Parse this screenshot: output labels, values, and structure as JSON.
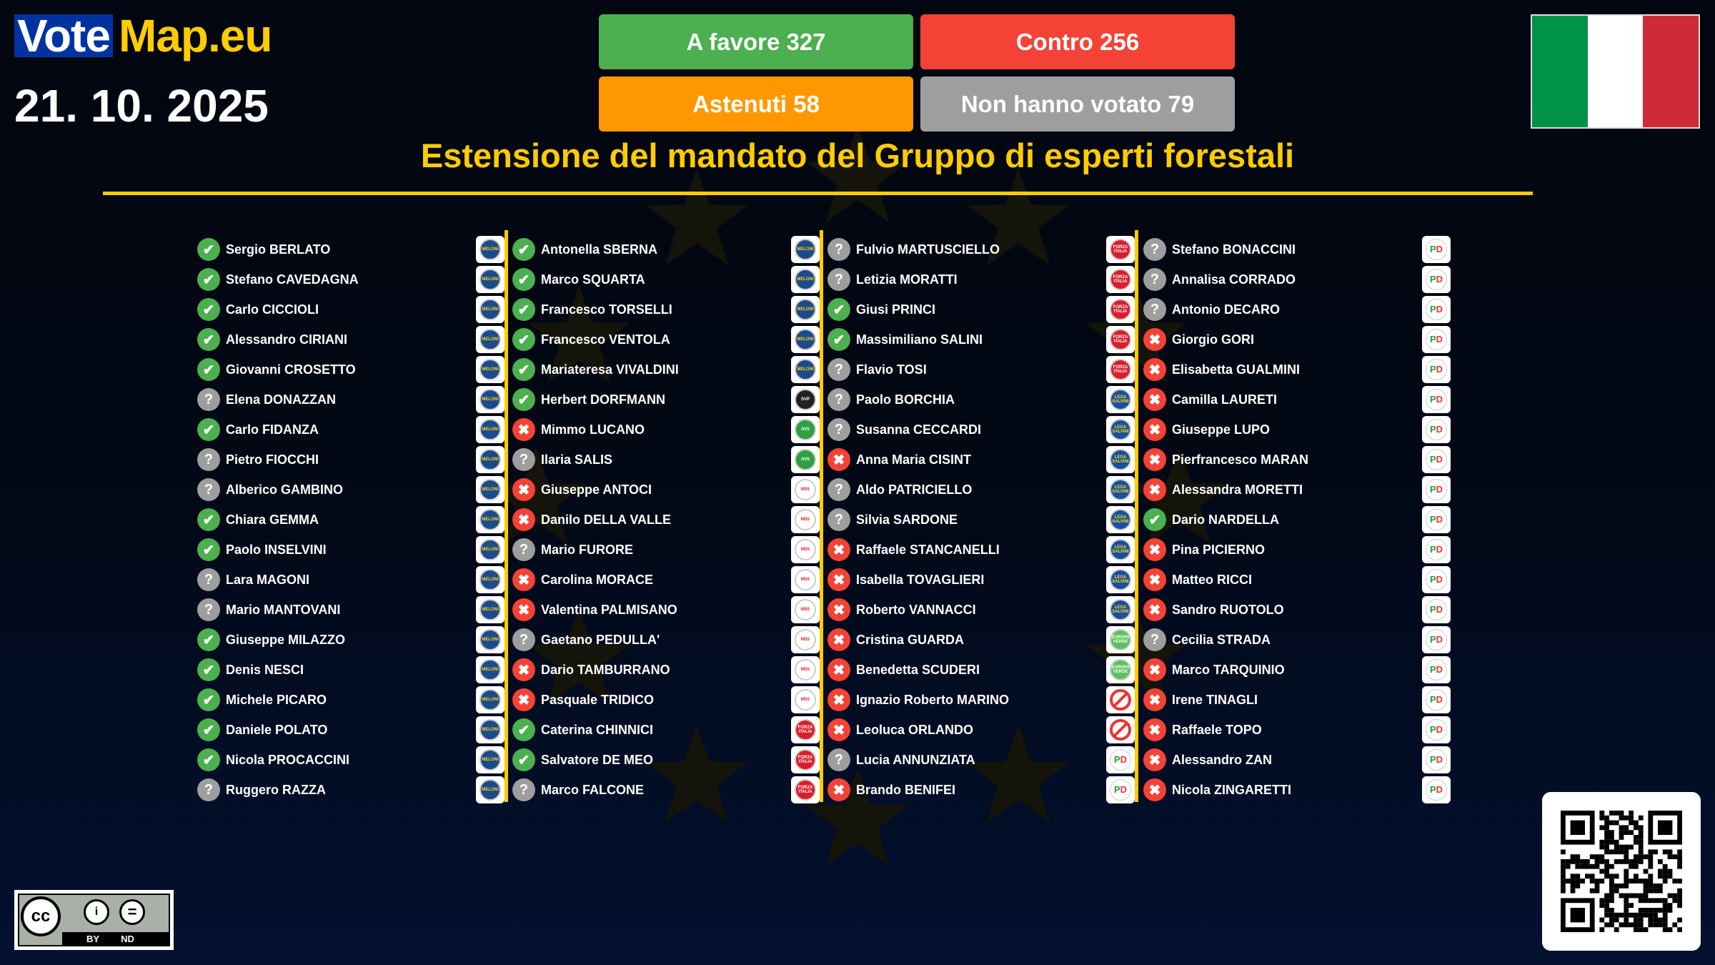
{
  "brand": {
    "vote": "Vote",
    "map": "Map.eu"
  },
  "date": "21. 10. 2025",
  "results": {
    "favor": "A favore 327",
    "against": "Contro 256",
    "abstain": "Astenuti 58",
    "absent": "Non hanno votato 79"
  },
  "colors": {
    "favor": "#4caf50",
    "against": "#f44336",
    "abstain": "#ff9800",
    "absent": "#9e9e9e",
    "accent": "#ffcc00",
    "brand_blue": "#0033a0"
  },
  "country_flag": "Italy",
  "title": "Estensione del mandato del Gruppo di esperti forestali",
  "license": {
    "by": "BY",
    "nd": "ND"
  },
  "vote_icons": {
    "yes": "check-icon",
    "no": "cross-icon",
    "absent": "question-icon"
  },
  "parties": {
    "fdi": {
      "logo_text": "MELONI",
      "bg": "#1c4b8c",
      "fg": "#ffd700"
    },
    "svp": {
      "logo_text": "SVP",
      "bg": "#222",
      "fg": "#fff"
    },
    "avs": {
      "logo_text": "AVS",
      "bg": "#2ea043",
      "fg": "#fff"
    },
    "m5s": {
      "logo_text": "M5S",
      "bg": "#fff",
      "fg": "#d22"
    },
    "fi": {
      "logo_text": "FORZA ITALIA",
      "bg": "#d81e2c",
      "fg": "#fff"
    },
    "lega": {
      "logo_text": "LEGA SALVINI",
      "bg": "#1a4fa0",
      "fg": "#ffe000"
    },
    "ev": {
      "logo_text": "EUROPA VERDE",
      "bg": "#5cc15c",
      "fg": "#fff"
    },
    "si": {
      "logo_text": "",
      "bg": "#fff",
      "fg": "#e33"
    },
    "pd": {
      "logo_text": "PD",
      "bg": "#fff",
      "fg": "#2a9d3a"
    }
  },
  "columns": [
    [
      {
        "name": "Sergio BERLATO",
        "vote": "yes",
        "party": "fdi"
      },
      {
        "name": "Stefano CAVEDAGNA",
        "vote": "yes",
        "party": "fdi"
      },
      {
        "name": "Carlo CICCIOLI",
        "vote": "yes",
        "party": "fdi"
      },
      {
        "name": "Alessandro CIRIANI",
        "vote": "yes",
        "party": "fdi"
      },
      {
        "name": "Giovanni CROSETTO",
        "vote": "yes",
        "party": "fdi"
      },
      {
        "name": "Elena DONAZZAN",
        "vote": "absent",
        "party": "fdi"
      },
      {
        "name": "Carlo FIDANZA",
        "vote": "yes",
        "party": "fdi"
      },
      {
        "name": "Pietro FIOCCHI",
        "vote": "absent",
        "party": "fdi"
      },
      {
        "name": "Alberico GAMBINO",
        "vote": "absent",
        "party": "fdi"
      },
      {
        "name": "Chiara GEMMA",
        "vote": "yes",
        "party": "fdi"
      },
      {
        "name": "Paolo INSELVINI",
        "vote": "yes",
        "party": "fdi"
      },
      {
        "name": "Lara MAGONI",
        "vote": "absent",
        "party": "fdi"
      },
      {
        "name": "Mario MANTOVANI",
        "vote": "absent",
        "party": "fdi"
      },
      {
        "name": "Giuseppe MILAZZO",
        "vote": "yes",
        "party": "fdi"
      },
      {
        "name": "Denis NESCI",
        "vote": "yes",
        "party": "fdi"
      },
      {
        "name": "Michele PICARO",
        "vote": "yes",
        "party": "fdi"
      },
      {
        "name": "Daniele POLATO",
        "vote": "yes",
        "party": "fdi"
      },
      {
        "name": "Nicola PROCACCINI",
        "vote": "yes",
        "party": "fdi"
      },
      {
        "name": "Ruggero RAZZA",
        "vote": "absent",
        "party": "fdi"
      }
    ],
    [
      {
        "name": "Antonella SBERNA",
        "vote": "yes",
        "party": "fdi"
      },
      {
        "name": "Marco SQUARTA",
        "vote": "yes",
        "party": "fdi"
      },
      {
        "name": "Francesco TORSELLI",
        "vote": "yes",
        "party": "fdi"
      },
      {
        "name": "Francesco VENTOLA",
        "vote": "yes",
        "party": "fdi"
      },
      {
        "name": "Mariateresa VIVALDINI",
        "vote": "yes",
        "party": "fdi"
      },
      {
        "name": "Herbert DORFMANN",
        "vote": "yes",
        "party": "svp"
      },
      {
        "name": "Mimmo LUCANO",
        "vote": "no",
        "party": "avs"
      },
      {
        "name": "Ilaria SALIS",
        "vote": "absent",
        "party": "avs"
      },
      {
        "name": "Giuseppe ANTOCI",
        "vote": "no",
        "party": "m5s"
      },
      {
        "name": "Danilo DELLA VALLE",
        "vote": "no",
        "party": "m5s"
      },
      {
        "name": "Mario FURORE",
        "vote": "absent",
        "party": "m5s"
      },
      {
        "name": "Carolina MORACE",
        "vote": "no",
        "party": "m5s"
      },
      {
        "name": "Valentina PALMISANO",
        "vote": "no",
        "party": "m5s"
      },
      {
        "name": "Gaetano PEDULLA'",
        "vote": "absent",
        "party": "m5s"
      },
      {
        "name": "Dario TAMBURRANO",
        "vote": "no",
        "party": "m5s"
      },
      {
        "name": "Pasquale TRIDICO",
        "vote": "no",
        "party": "m5s"
      },
      {
        "name": "Caterina CHINNICI",
        "vote": "yes",
        "party": "fi"
      },
      {
        "name": "Salvatore DE MEO",
        "vote": "yes",
        "party": "fi"
      },
      {
        "name": "Marco FALCONE",
        "vote": "absent",
        "party": "fi"
      }
    ],
    [
      {
        "name": "Fulvio MARTUSCIELLO",
        "vote": "absent",
        "party": "fi"
      },
      {
        "name": "Letizia MORATTI",
        "vote": "absent",
        "party": "fi"
      },
      {
        "name": "Giusi PRINCI",
        "vote": "yes",
        "party": "fi"
      },
      {
        "name": "Massimiliano SALINI",
        "vote": "yes",
        "party": "fi"
      },
      {
        "name": "Flavio TOSI",
        "vote": "absent",
        "party": "fi"
      },
      {
        "name": "Paolo BORCHIA",
        "vote": "absent",
        "party": "lega"
      },
      {
        "name": "Susanna CECCARDI",
        "vote": "absent",
        "party": "lega"
      },
      {
        "name": "Anna Maria CISINT",
        "vote": "no",
        "party": "lega"
      },
      {
        "name": "Aldo PATRICIELLO",
        "vote": "absent",
        "party": "lega"
      },
      {
        "name": "Silvia SARDONE",
        "vote": "absent",
        "party": "lega"
      },
      {
        "name": "Raffaele STANCANELLI",
        "vote": "no",
        "party": "lega"
      },
      {
        "name": "Isabella TOVAGLIERI",
        "vote": "no",
        "party": "lega"
      },
      {
        "name": "Roberto VANNACCI",
        "vote": "no",
        "party": "lega"
      },
      {
        "name": "Cristina GUARDA",
        "vote": "no",
        "party": "ev"
      },
      {
        "name": "Benedetta SCUDERI",
        "vote": "no",
        "party": "ev"
      },
      {
        "name": "Ignazio Roberto MARINO",
        "vote": "no",
        "party": "si"
      },
      {
        "name": "Leoluca ORLANDO",
        "vote": "no",
        "party": "si"
      },
      {
        "name": "Lucia ANNUNZIATA",
        "vote": "absent",
        "party": "pd"
      },
      {
        "name": "Brando BENIFEI",
        "vote": "no",
        "party": "pd"
      }
    ],
    [
      {
        "name": "Stefano BONACCINI",
        "vote": "absent",
        "party": "pd"
      },
      {
        "name": "Annalisa CORRADO",
        "vote": "absent",
        "party": "pd"
      },
      {
        "name": "Antonio DECARO",
        "vote": "absent",
        "party": "pd"
      },
      {
        "name": "Giorgio GORI",
        "vote": "no",
        "party": "pd"
      },
      {
        "name": "Elisabetta GUALMINI",
        "vote": "no",
        "party": "pd"
      },
      {
        "name": "Camilla LAURETI",
        "vote": "no",
        "party": "pd"
      },
      {
        "name": "Giuseppe LUPO",
        "vote": "no",
        "party": "pd"
      },
      {
        "name": "Pierfrancesco MARAN",
        "vote": "no",
        "party": "pd"
      },
      {
        "name": "Alessandra MORETTI",
        "vote": "no",
        "party": "pd"
      },
      {
        "name": "Dario NARDELLA",
        "vote": "yes",
        "party": "pd"
      },
      {
        "name": "Pina PICIERNO",
        "vote": "no",
        "party": "pd"
      },
      {
        "name": "Matteo RICCI",
        "vote": "no",
        "party": "pd"
      },
      {
        "name": "Sandro RUOTOLO",
        "vote": "no",
        "party": "pd"
      },
      {
        "name": "Cecilia STRADA",
        "vote": "absent",
        "party": "pd"
      },
      {
        "name": "Marco TARQUINIO",
        "vote": "no",
        "party": "pd"
      },
      {
        "name": "Irene TINAGLI",
        "vote": "no",
        "party": "pd"
      },
      {
        "name": "Raffaele TOPO",
        "vote": "no",
        "party": "pd"
      },
      {
        "name": "Alessandro ZAN",
        "vote": "no",
        "party": "pd"
      },
      {
        "name": "Nicola ZINGARETTI",
        "vote": "no",
        "party": "pd"
      }
    ]
  ]
}
